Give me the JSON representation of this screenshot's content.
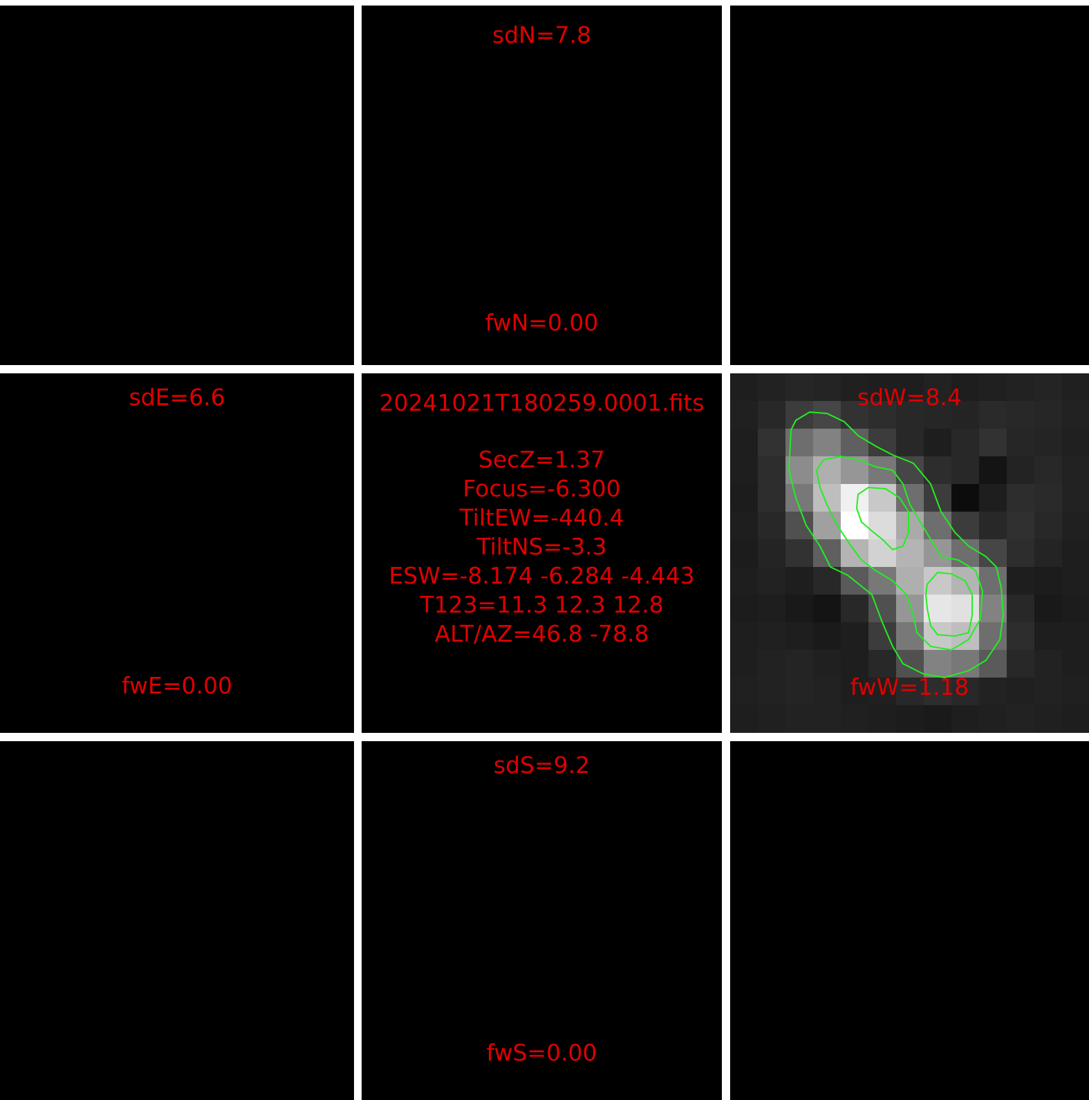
{
  "panels": {
    "north": {
      "sd": "sdN=7.8",
      "fw": "fwN=0.00"
    },
    "east": {
      "sd": "sdE=6.6",
      "fw": "fwE=0.00"
    },
    "west": {
      "sd": "sdW=8.4",
      "fw": "fwW=1.18"
    },
    "south": {
      "sd": "sdS=9.2",
      "fw": "fwS=0.00"
    }
  },
  "info": {
    "filename": "20241021T180259.0001.fits",
    "lines": [
      "SecZ=1.37",
      "Focus=-6.300",
      "TiltEW=-440.4",
      "TiltNS=-3.3",
      "ESW=-8.174 -6.284 -4.443",
      "T123=11.3 12.3 12.8",
      "ALT/AZ=46.8 -78.8"
    ]
  },
  "colors": {
    "text": "#e00000",
    "contour": "#22ee22",
    "grid_lines": "#ffffff",
    "panel_bg": "#000000"
  }
}
